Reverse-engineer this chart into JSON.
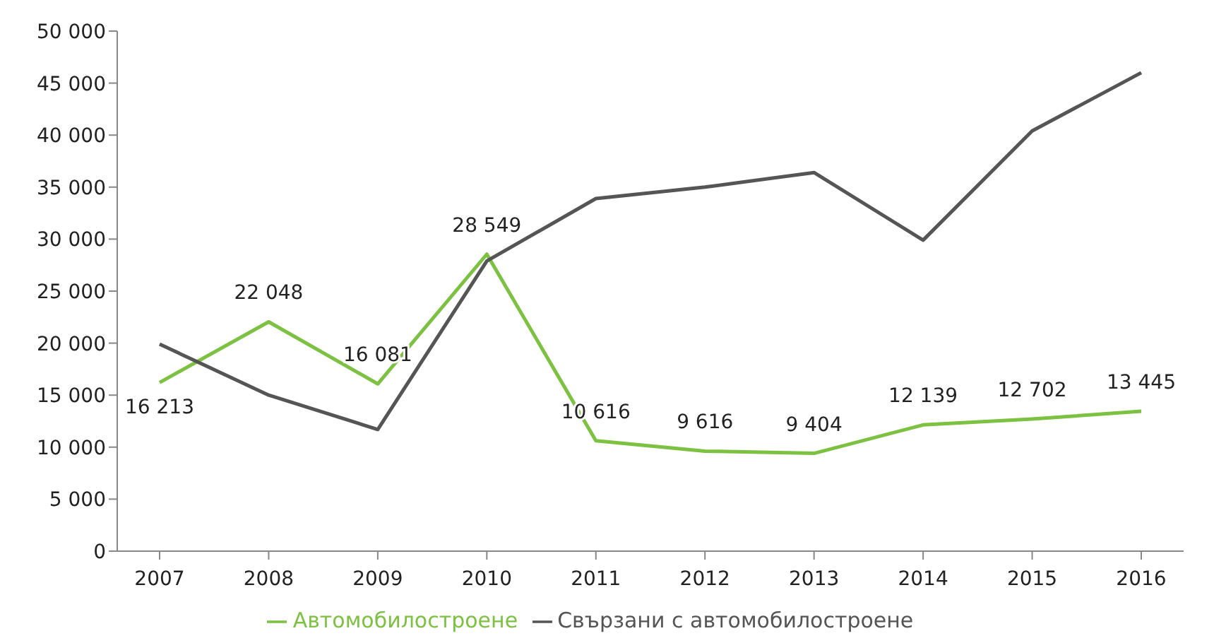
{
  "chart_data": {
    "type": "line",
    "categories": [
      "2007",
      "2008",
      "2009",
      "2010",
      "2011",
      "2012",
      "2013",
      "2014",
      "2015",
      "2016"
    ],
    "series": [
      {
        "name": "Автомобилостроене",
        "color": "#7dc142",
        "values": [
          16213,
          22048,
          16081,
          28549,
          10616,
          9616,
          9404,
          12139,
          12702,
          13445
        ],
        "value_labels": [
          "16 213",
          "22 048",
          "16 081",
          "28 549",
          "10 616",
          "9 616",
          "9 404",
          "12 139",
          "12 702",
          "13 445"
        ]
      },
      {
        "name": "Свързани с автомобилостроене",
        "color": "#555555",
        "values": [
          19900,
          15000,
          11700,
          27900,
          33900,
          35000,
          36400,
          29900,
          40400,
          46000
        ]
      }
    ],
    "ylim": [
      0,
      50000
    ],
    "yticks": [
      {
        "value": 0,
        "label": "0"
      },
      {
        "value": 5000,
        "label": "5 000"
      },
      {
        "value": 10000,
        "label": "10 000"
      },
      {
        "value": 15000,
        "label": "15 000"
      },
      {
        "value": 20000,
        "label": "20 000"
      },
      {
        "value": 25000,
        "label": "25 000"
      },
      {
        "value": 30000,
        "label": "30 000"
      },
      {
        "value": 35000,
        "label": "35 000"
      },
      {
        "value": 40000,
        "label": "40 000"
      },
      {
        "value": 45000,
        "label": "45 000"
      },
      {
        "value": 50000,
        "label": "50 000"
      }
    ],
    "grid": false,
    "legend": "bottom",
    "marker": "none",
    "line_style": "solid"
  }
}
